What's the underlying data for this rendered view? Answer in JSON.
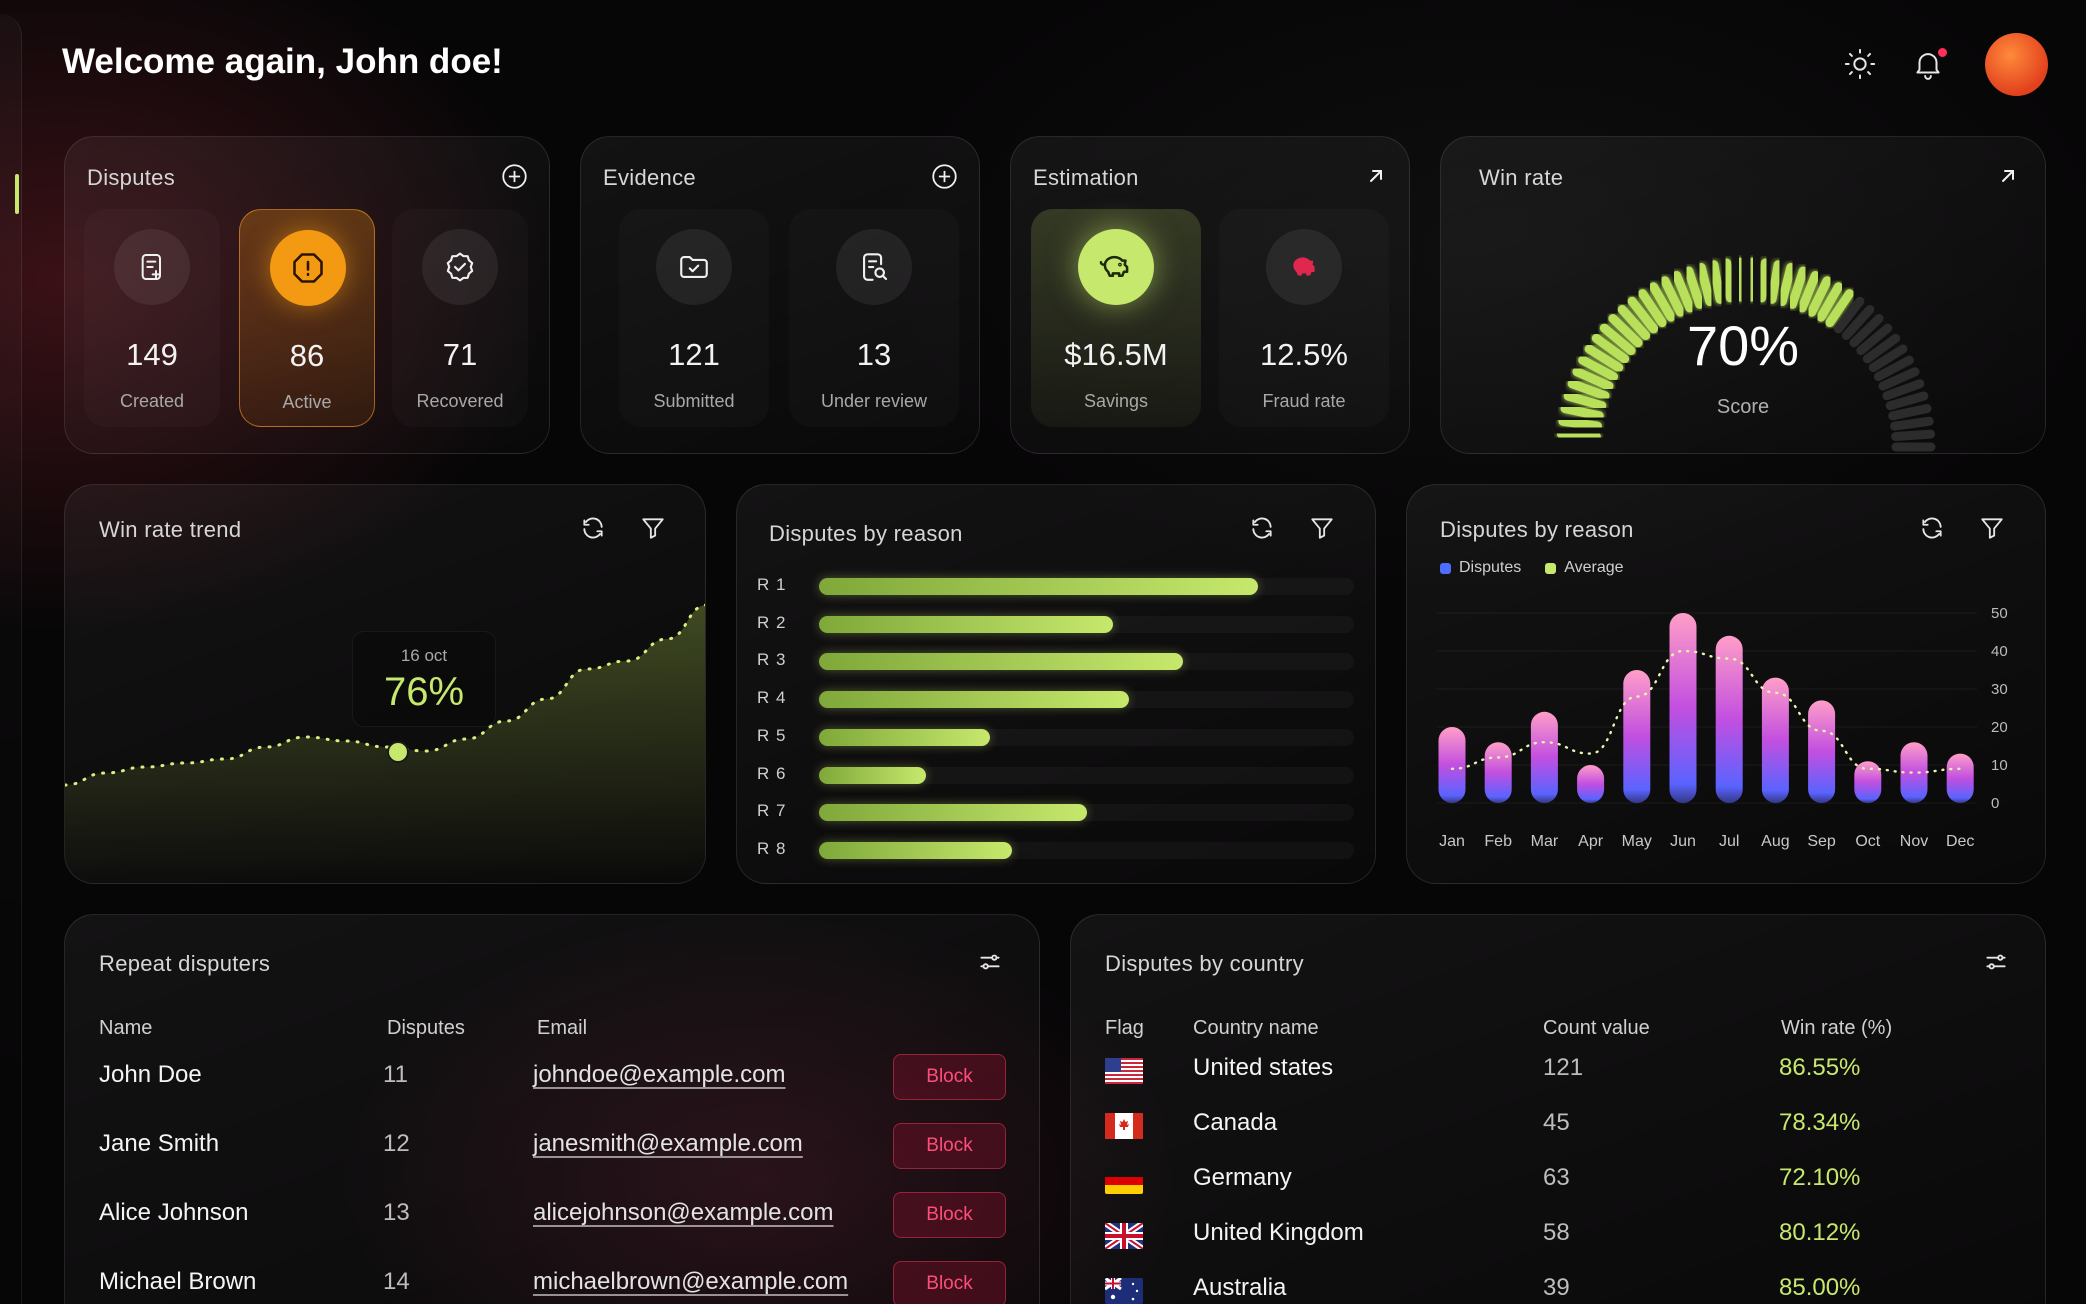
{
  "header": {
    "title": "Welcome again, John doe!"
  },
  "disputes": {
    "title": "Disputes",
    "tiles": [
      {
        "value": "149",
        "label": "Created"
      },
      {
        "value": "86",
        "label": "Active"
      },
      {
        "value": "71",
        "label": "Recovered"
      }
    ]
  },
  "evidence": {
    "title": "Evidence",
    "tiles": [
      {
        "value": "121",
        "label": "Submitted"
      },
      {
        "value": "13",
        "label": "Under review"
      }
    ]
  },
  "estimation": {
    "title": "Estimation",
    "tiles": [
      {
        "value": "$16.5M",
        "label": "Savings"
      },
      {
        "value": "12.5%",
        "label": "Fraud rate"
      }
    ]
  },
  "win_rate": {
    "title": "Win rate",
    "value": "70%",
    "label": "Score",
    "fraction": 0.7
  },
  "trend": {
    "title": "Win rate trend",
    "tooltip_date": "16 oct",
    "tooltip_value": "76%"
  },
  "reasons": {
    "title": "Disputes by reason",
    "labels": [
      "R 1",
      "R 2",
      "R 3",
      "R 4",
      "R 5",
      "R 6",
      "R 7",
      "R 8"
    ]
  },
  "monthly": {
    "title": "Disputes by reason",
    "legend": [
      "Disputes",
      "Average"
    ]
  },
  "repeat": {
    "title": "Repeat disputers",
    "columns": [
      "Name",
      "Disputes",
      "Email"
    ],
    "rows": [
      {
        "name": "John Doe",
        "disputes": "11",
        "email": "johndoe@example.com",
        "action": "Block"
      },
      {
        "name": "Jane Smith",
        "disputes": "12",
        "email": "janesmith@example.com",
        "action": "Block"
      },
      {
        "name": "Alice Johnson",
        "disputes": "13",
        "email": "alicejohnson@example.com",
        "action": "Block"
      },
      {
        "name": "Michael Brown",
        "disputes": "14",
        "email": "michaelbrown@example.com",
        "action": "Block"
      }
    ]
  },
  "country": {
    "title": "Disputes by country",
    "columns": [
      "Flag",
      "Country name",
      "Count value",
      "Win rate (%)"
    ],
    "rows": [
      {
        "name": "United states",
        "count": "121",
        "rate": "86.55%",
        "flag": "us-flag"
      },
      {
        "name": "Canada",
        "count": "45",
        "rate": "78.34%",
        "flag": "canada-flag"
      },
      {
        "name": "Germany",
        "count": "63",
        "rate": "72.10%",
        "flag": "germany-flag"
      },
      {
        "name": "United Kingdom",
        "count": "58",
        "rate": "80.12%",
        "flag": "uk-flag"
      },
      {
        "name": "Australia",
        "count": "39",
        "rate": "85.00%",
        "flag": "australia-flag"
      }
    ]
  },
  "chart_data": [
    {
      "type": "area",
      "title": "Win rate trend",
      "values": [
        10,
        16,
        19,
        21,
        23,
        29,
        34,
        32,
        29,
        27,
        33,
        42,
        53,
        68,
        72,
        83,
        100
      ],
      "highlight": {
        "label": "16 oct",
        "value": "76%"
      }
    },
    {
      "type": "bar",
      "orientation": "horizontal",
      "title": "Disputes by reason",
      "categories": [
        "R 1",
        "R 2",
        "R 3",
        "R 4",
        "R 5",
        "R 6",
        "R 7",
        "R 8"
      ],
      "values": [
        82,
        55,
        68,
        58,
        32,
        20,
        50,
        36
      ],
      "xlim": [
        0,
        100
      ]
    },
    {
      "type": "bar",
      "title": "Disputes by reason",
      "categories": [
        "Jan",
        "Feb",
        "Mar",
        "Apr",
        "May",
        "Jun",
        "Jul",
        "Aug",
        "Sep",
        "Oct",
        "Nov",
        "Dec"
      ],
      "series": [
        {
          "name": "Disputes",
          "values": [
            20,
            16,
            24,
            10,
            35,
            50,
            44,
            33,
            27,
            11,
            16,
            13
          ]
        },
        {
          "name": "Average",
          "values": [
            9,
            12,
            16,
            13,
            28,
            40,
            38,
            29,
            19,
            9,
            8,
            9
          ]
        }
      ],
      "ylim": [
        0,
        50
      ],
      "yticks": [
        0,
        10,
        20,
        30,
        40,
        50
      ],
      "legend_position": "top-left"
    }
  ]
}
